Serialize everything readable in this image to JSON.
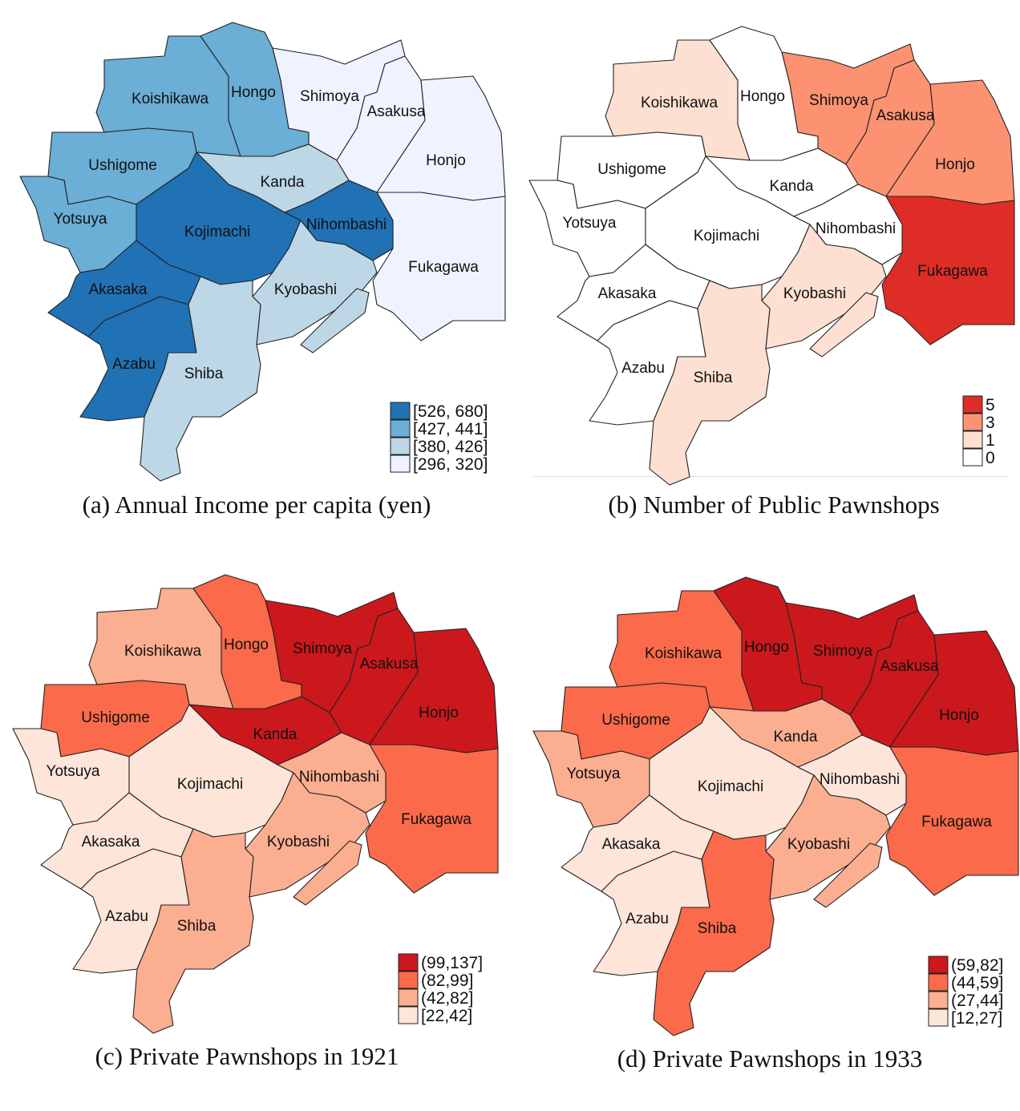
{
  "districts": [
    "Koishikawa",
    "Hongo",
    "Shimoya",
    "Asakusa",
    "Honjo",
    "Fukagawa",
    "Ushigome",
    "Kanda",
    "Yotsuya",
    "Kojimachi",
    "Nihombashi",
    "Kyobashi",
    "Akasaka",
    "Azabu",
    "Shiba"
  ],
  "panels": [
    {
      "caption": "(a) Annual Income per capita (yen)",
      "legend": [
        {
          "label": "[526, 680]",
          "color": "#2171b5"
        },
        {
          "label": "[427, 441]",
          "color": "#6baed6"
        },
        {
          "label": "[380, 426]",
          "color": "#bdd7e7"
        },
        {
          "label": "[296, 320]",
          "color": "#eff3ff"
        }
      ],
      "classes": {
        "Kojimachi": 0,
        "Nihombashi": 0,
        "Akasaka": 0,
        "Azabu": 0,
        "Koishikawa": 1,
        "Hongo": 1,
        "Ushigome": 1,
        "Yotsuya": 1,
        "Kanda": 2,
        "Kyobashi": 2,
        "Shiba": 2,
        "Shimoya": 3,
        "Asakusa": 3,
        "Honjo": 3,
        "Fukagawa": 3
      }
    },
    {
      "caption": "(b) Number of Public Pawnshops",
      "legend": [
        {
          "label": "5",
          "color": "#de2d26"
        },
        {
          "label": "3",
          "color": "#fc9272"
        },
        {
          "label": "1",
          "color": "#fee0d2"
        },
        {
          "label": "0",
          "color": "#ffffff"
        }
      ],
      "classes": {
        "Fukagawa": 0,
        "Shimoya": 1,
        "Asakusa": 1,
        "Honjo": 1,
        "Koishikawa": 2,
        "Kyobashi": 2,
        "Shiba": 2,
        "Hongo": 3,
        "Ushigome": 3,
        "Kanda": 3,
        "Kojimachi": 3,
        "Nihombashi": 3,
        "Yotsuya": 3,
        "Akasaka": 3,
        "Azabu": 3
      }
    },
    {
      "caption": "(c) Private Pawnshops in 1921",
      "legend": [
        {
          "label": "(99,137]",
          "color": "#cb181d"
        },
        {
          "label": "(82,99]",
          "color": "#fb6a4a"
        },
        {
          "label": "(42,82]",
          "color": "#fcae91"
        },
        {
          "label": "[22,42]",
          "color": "#fee5d9"
        }
      ],
      "classes": {
        "Shimoya": 0,
        "Asakusa": 0,
        "Honjo": 0,
        "Kanda": 0,
        "Hongo": 1,
        "Ushigome": 1,
        "Fukagawa": 1,
        "Koishikawa": 2,
        "Nihombashi": 2,
        "Kyobashi": 2,
        "Shiba": 2,
        "Yotsuya": 3,
        "Kojimachi": 3,
        "Akasaka": 3,
        "Azabu": 3
      }
    },
    {
      "caption": "(d) Private Pawnshops in 1933",
      "legend": [
        {
          "label": "(59,82]",
          "color": "#cb181d"
        },
        {
          "label": "(44,59]",
          "color": "#fb6a4a"
        },
        {
          "label": "(27,44]",
          "color": "#fcae91"
        },
        {
          "label": "[12,27]",
          "color": "#fee5d9"
        }
      ],
      "classes": {
        "Hongo": 0,
        "Shimoya": 0,
        "Asakusa": 0,
        "Honjo": 0,
        "Koishikawa": 1,
        "Ushigome": 1,
        "Fukagawa": 1,
        "Shiba": 1,
        "Yotsuya": 2,
        "Kanda": 2,
        "Kyobashi": 2,
        "Kojimachi": 3,
        "Nihombashi": 3,
        "Akasaka": 3,
        "Azabu": 3
      }
    }
  ]
}
